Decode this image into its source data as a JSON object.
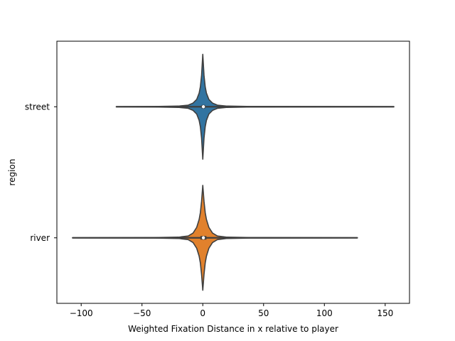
{
  "chart_data": {
    "type": "violin",
    "orientation": "horizontal",
    "title": "",
    "xlabel": "Weighted Fixation Distance in x relative to player",
    "ylabel": "region",
    "xlim": [
      -120,
      170
    ],
    "x_ticks": [
      -100,
      -50,
      0,
      50,
      100,
      150
    ],
    "x_tick_labels": [
      "−100",
      "−50",
      "0",
      "50",
      "100",
      "150"
    ],
    "categories": [
      "street",
      "river"
    ],
    "grid": false,
    "legend": "none",
    "series": [
      {
        "category": "street",
        "color": "#3274a1",
        "range": [
          -71,
          157
        ],
        "peak_extent": [
          -3,
          3
        ],
        "q1": -1.0,
        "median": 0.5,
        "q3": 2.0,
        "kde_support": [
          -71,
          -40,
          -20,
          -12,
          -8,
          -5,
          -3,
          -2,
          -1,
          0,
          1,
          2,
          3,
          5,
          8,
          12,
          20,
          40,
          157
        ],
        "kde_density": [
          0.0,
          0.005,
          0.012,
          0.03,
          0.07,
          0.14,
          0.26,
          0.38,
          0.6,
          1.0,
          0.6,
          0.38,
          0.26,
          0.14,
          0.07,
          0.03,
          0.012,
          0.005,
          0.0
        ]
      },
      {
        "category": "river",
        "color": "#e1812c",
        "range": [
          -107,
          127
        ],
        "peak_extent": [
          -4,
          4
        ],
        "q1": -2.0,
        "median": 0.5,
        "q3": 3.0,
        "kde_support": [
          -107,
          -40,
          -20,
          -12,
          -8,
          -5,
          -3,
          -2,
          -1,
          0,
          1,
          2,
          3,
          5,
          8,
          12,
          20,
          40,
          127
        ],
        "kde_density": [
          0.0,
          0.005,
          0.012,
          0.035,
          0.09,
          0.2,
          0.35,
          0.48,
          0.7,
          1.0,
          0.7,
          0.48,
          0.35,
          0.2,
          0.09,
          0.035,
          0.012,
          0.005,
          0.0
        ]
      }
    ]
  }
}
